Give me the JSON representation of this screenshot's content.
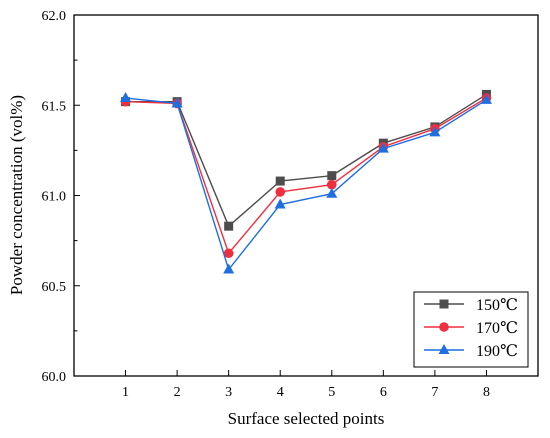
{
  "chart_data": {
    "type": "line",
    "title": "",
    "xlabel": "Surface selected points",
    "ylabel": "Powder concentration (vol%)",
    "x": [
      1,
      2,
      3,
      4,
      5,
      6,
      7,
      8
    ],
    "x_ticks": [
      "1",
      "2",
      "3",
      "4",
      "5",
      "6",
      "7",
      "8"
    ],
    "xlim": [
      0,
      9
    ],
    "ylim": [
      60.0,
      62.0
    ],
    "y_ticks": [
      "60.0",
      "60.5",
      "61.0",
      "61.5",
      "62.0"
    ],
    "grid": false,
    "legend_position": "bottom-right",
    "series": [
      {
        "name": "150℃",
        "color": "#4d4d4d",
        "marker": "square",
        "values": [
          61.52,
          61.52,
          60.83,
          61.08,
          61.11,
          61.29,
          61.38,
          61.56
        ]
      },
      {
        "name": "170℃",
        "color": "#ef2f3f",
        "marker": "circle",
        "values": [
          61.52,
          61.51,
          60.68,
          61.02,
          61.06,
          61.27,
          61.37,
          61.54
        ]
      },
      {
        "name": "190℃",
        "color": "#1f6fe0",
        "marker": "triangle",
        "values": [
          61.54,
          61.51,
          60.59,
          60.95,
          61.01,
          61.26,
          61.35,
          61.53
        ]
      }
    ]
  }
}
